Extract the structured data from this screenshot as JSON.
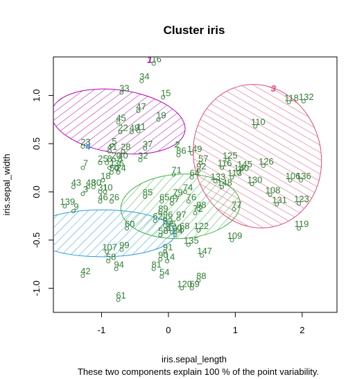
{
  "chart_data": {
    "type": "scatter",
    "title": "Cluster iris",
    "xlabel": "iris.sepal_length",
    "ylabel": "iris.sepal_width",
    "subtitle": "These two components explain 100 % of the point variability.",
    "xlim": [
      -1.72,
      2.52
    ],
    "ylim": [
      -1.25,
      1.4
    ],
    "x_ticks": [
      -1,
      0,
      1,
      2
    ],
    "y_ticks": [
      -1.0,
      -0.5,
      0.0,
      0.5,
      1.0
    ],
    "x_tick_labels": [
      "-1",
      "0",
      "1",
      "2"
    ],
    "y_tick_labels": [
      "-1.0",
      "-0.5",
      "0.0",
      "0.5",
      "1.0"
    ],
    "grid": false,
    "clusters": [
      {
        "id": "1",
        "color": "#b000b0",
        "center": [
          -0.75,
          0.73
        ],
        "rx": 0.47,
        "ry": 0.7,
        "angle": -82,
        "label_pos": [
          -0.28,
          1.34
        ],
        "points": [
          {
            "label": "16",
            "x": -0.22,
            "y": 1.33
          },
          {
            "label": "34",
            "x": -0.4,
            "y": 1.15
          },
          {
            "label": "33",
            "x": -0.7,
            "y": 1.03
          },
          {
            "label": "15",
            "x": -0.08,
            "y": 0.98
          },
          {
            "label": "47",
            "x": -0.45,
            "y": 0.84
          },
          {
            "label": "19",
            "x": -0.15,
            "y": 0.75
          },
          {
            "label": "45",
            "x": -0.75,
            "y": 0.72
          },
          {
            "label": "22",
            "x": -0.72,
            "y": 0.62
          },
          {
            "label": "49",
            "x": -0.55,
            "y": 0.62
          },
          {
            "label": "11",
            "x": -0.45,
            "y": 0.63
          },
          {
            "label": "37",
            "x": -0.35,
            "y": 0.45
          },
          {
            "label": "5",
            "x": -0.85,
            "y": 0.48
          },
          {
            "label": "41",
            "x": -0.88,
            "y": 0.42
          },
          {
            "label": "28",
            "x": -0.68,
            "y": 0.42
          },
          {
            "label": "20",
            "x": -0.82,
            "y": 0.33
          },
          {
            "label": "40",
            "x": -0.72,
            "y": 0.33
          },
          {
            "label": "32",
            "x": -0.42,
            "y": 0.33
          },
          {
            "label": "25",
            "x": -1.02,
            "y": 0.3
          },
          {
            "label": "8",
            "x": -0.92,
            "y": 0.3
          },
          {
            "label": "36",
            "x": -0.78,
            "y": 0.25
          },
          {
            "label": "50",
            "x": -0.85,
            "y": 0.2
          },
          {
            "label": "24",
            "x": -0.75,
            "y": 0.2
          },
          {
            "label": "23",
            "x": -1.28,
            "y": 0.47
          },
          {
            "label": "1",
            "x": -0.88,
            "y": 0.25
          },
          {
            "label": "18",
            "x": -0.98,
            "y": 0.12
          }
        ]
      },
      {
        "id": "2",
        "color": "#3cb040",
        "center": [
          0.18,
          -0.15
        ],
        "rx": 0.48,
        "ry": 0.62,
        "angle": 87,
        "label_pos": [
          0.13,
          0.46
        ],
        "points": [
          {
            "label": "149",
            "x": 0.35,
            "y": 0.4
          },
          {
            "label": "86",
            "x": 0.15,
            "y": 0.38
          },
          {
            "label": "57",
            "x": 0.48,
            "y": 0.3
          },
          {
            "label": "71",
            "x": 0.08,
            "y": 0.18
          },
          {
            "label": "64",
            "x": 0.35,
            "y": 0.15
          },
          {
            "label": "92",
            "x": 0.45,
            "y": 0.22
          },
          {
            "label": "74",
            "x": 0.25,
            "y": 0.0
          },
          {
            "label": "79",
            "x": 0.1,
            "y": -0.05
          },
          {
            "label": "85",
            "x": -0.35,
            "y": -0.05
          },
          {
            "label": "65",
            "x": -0.1,
            "y": -0.1
          },
          {
            "label": "67",
            "x": 0.05,
            "y": -0.12
          },
          {
            "label": "76",
            "x": 0.3,
            "y": -0.1
          },
          {
            "label": "98",
            "x": 0.45,
            "y": -0.18
          },
          {
            "label": "72",
            "x": 0.4,
            "y": -0.22
          },
          {
            "label": "89",
            "x": -0.12,
            "y": -0.22
          },
          {
            "label": "96",
            "x": -0.05,
            "y": -0.28
          },
          {
            "label": "97",
            "x": 0.15,
            "y": -0.28
          },
          {
            "label": "62",
            "x": -0.2,
            "y": -0.3
          },
          {
            "label": "83",
            "x": -0.05,
            "y": -0.35
          },
          {
            "label": "95",
            "x": 0.0,
            "y": -0.38
          },
          {
            "label": "68",
            "x": 0.2,
            "y": -0.4
          },
          {
            "label": "100",
            "x": 0.05,
            "y": -0.42
          },
          {
            "label": "56",
            "x": -0.12,
            "y": -0.45
          },
          {
            "label": "84",
            "x": 0.1,
            "y": -0.45
          },
          {
            "label": "122",
            "x": 0.45,
            "y": -0.4
          },
          {
            "label": "135",
            "x": 0.3,
            "y": -0.55
          },
          {
            "label": "91",
            "x": -0.05,
            "y": -0.62
          },
          {
            "label": "147",
            "x": 0.5,
            "y": -0.66
          },
          {
            "label": "90",
            "x": -0.12,
            "y": -0.7
          },
          {
            "label": "14",
            "x": -0.02,
            "y": -0.72
          },
          {
            "label": "81",
            "x": -0.22,
            "y": -0.8
          },
          {
            "label": "54",
            "x": -0.1,
            "y": -0.88
          },
          {
            "label": "88",
            "x": 0.45,
            "y": -0.92
          },
          {
            "label": "120",
            "x": 0.2,
            "y": -1.0
          },
          {
            "label": "69",
            "x": 0.35,
            "y": -1.0
          }
        ]
      },
      {
        "id": "3",
        "color": "#dc4a78",
        "center": [
          1.33,
          0.37
        ],
        "rx": 0.95,
        "ry": 0.75,
        "angle": -15,
        "label_pos": [
          1.57,
          1.04
        ],
        "points": [
          {
            "label": "118",
            "x": 1.8,
            "y": 0.93
          },
          {
            "label": "132",
            "x": 2.02,
            "y": 0.94
          },
          {
            "label": "110",
            "x": 1.3,
            "y": 0.68
          },
          {
            "label": "125",
            "x": 0.88,
            "y": 0.33
          },
          {
            "label": "126",
            "x": 1.42,
            "y": 0.27
          },
          {
            "label": "145",
            "x": 1.1,
            "y": 0.24
          },
          {
            "label": "140",
            "x": 1.05,
            "y": 0.2
          },
          {
            "label": "113",
            "x": 0.95,
            "y": 0.15
          },
          {
            "label": "130",
            "x": 1.25,
            "y": 0.08
          },
          {
            "label": "106",
            "x": 1.82,
            "y": 0.12
          },
          {
            "label": "136",
            "x": 1.98,
            "y": 0.12
          },
          {
            "label": "108",
            "x": 1.52,
            "y": -0.03
          },
          {
            "label": "123",
            "x": 1.95,
            "y": -0.12
          },
          {
            "label": "131",
            "x": 1.62,
            "y": -0.13
          },
          {
            "label": "77",
            "x": 0.98,
            "y": -0.18
          },
          {
            "label": "119",
            "x": 1.95,
            "y": -0.38
          },
          {
            "label": "109",
            "x": 0.95,
            "y": -0.5
          },
          {
            "label": "133",
            "x": 0.7,
            "y": 0.11
          },
          {
            "label": "148",
            "x": 0.8,
            "y": 0.05
          },
          {
            "label": "116",
            "x": 0.8,
            "y": 0.25
          }
        ]
      },
      {
        "id": "4",
        "color": "#2a9ad6",
        "center": [
          -0.99,
          -0.43
        ],
        "rx": 0.35,
        "ry": 0.76,
        "angle": 90,
        "label_pos": [
          -1.2,
          0.44
        ],
        "points": [
          {
            "label": "7",
            "x": -1.28,
            "y": 0.25
          },
          {
            "label": "43",
            "x": -1.42,
            "y": 0.05
          },
          {
            "label": "48",
            "x": -1.2,
            "y": 0.05
          },
          {
            "label": "30",
            "x": -1.12,
            "y": 0.05
          },
          {
            "label": "3",
            "x": -1.28,
            "y": -0.02
          },
          {
            "label": "31",
            "x": -1.02,
            "y": 0.0
          },
          {
            "label": "10",
            "x": -0.95,
            "y": 0.0
          },
          {
            "label": "139",
            "x": -1.55,
            "y": -0.15
          },
          {
            "label": "9",
            "x": -1.42,
            "y": -0.2
          },
          {
            "label": "46",
            "x": -1.02,
            "y": -0.1
          },
          {
            "label": "26",
            "x": -0.85,
            "y": -0.1
          },
          {
            "label": "60",
            "x": -0.62,
            "y": -0.38
          },
          {
            "label": "107",
            "x": -0.92,
            "y": -0.62
          },
          {
            "label": "99",
            "x": -0.7,
            "y": -0.6
          },
          {
            "label": "58",
            "x": -0.9,
            "y": -0.72
          },
          {
            "label": "94",
            "x": -0.78,
            "y": -0.8
          },
          {
            "label": "42",
            "x": -1.28,
            "y": -0.87
          },
          {
            "label": "61",
            "x": -0.75,
            "y": -1.12
          }
        ]
      }
    ]
  }
}
